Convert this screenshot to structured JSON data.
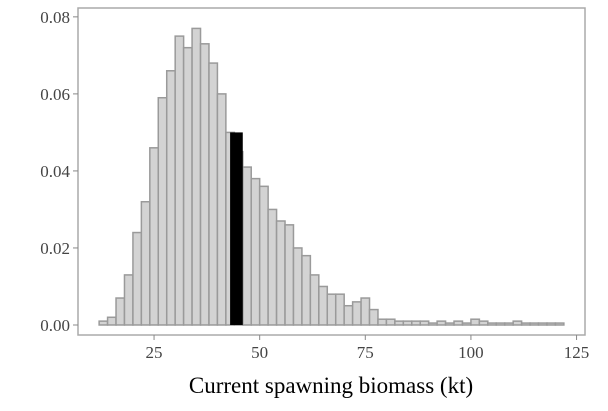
{
  "chart_data": {
    "type": "histogram",
    "xlabel": "Current spawning biomass (kt)",
    "bins": [
      12,
      14,
      16,
      18,
      20,
      22,
      24,
      26,
      28,
      30,
      32,
      34,
      36,
      38,
      40,
      42,
      44,
      46,
      48,
      50,
      52,
      54,
      56,
      58,
      60,
      62,
      64,
      66,
      68,
      70,
      72,
      74,
      76,
      78,
      80,
      82,
      84,
      86,
      88,
      90,
      92,
      94,
      96,
      98,
      100,
      102,
      104,
      106,
      108,
      110,
      112,
      114,
      116,
      118,
      120,
      122
    ],
    "values": [
      0.001,
      0.002,
      0.007,
      0.013,
      0.024,
      0.032,
      0.046,
      0.059,
      0.066,
      0.075,
      0.072,
      0.077,
      0.073,
      0.068,
      0.06,
      0.05,
      0.045,
      0.041,
      0.038,
      0.036,
      0.03,
      0.027,
      0.026,
      0.02,
      0.018,
      0.013,
      0.01,
      0.008,
      0.008,
      0.005,
      0.006,
      0.007,
      0.004,
      0.0015,
      0.0015,
      0.001,
      0.001,
      0.001,
      0.001,
      0.0005,
      0.001,
      0.0005,
      0.001,
      0.0005,
      0.0015,
      0.001,
      0.0005,
      0.0005,
      0.0005,
      0.001,
      0.0005,
      0.0005,
      0.0005,
      0.0005,
      0.0005
    ],
    "color": "#d3d3d3",
    "edgecolor": "#9a9a9a",
    "highlight": {
      "x": [
        43,
        46
      ],
      "value": 0.05,
      "color": "#000000"
    },
    "xlim": [
      7,
      127
    ],
    "ylim": [
      -0.0026,
      0.0823
    ],
    "xticks": [
      25,
      50,
      75,
      100,
      125
    ],
    "yticks": [
      {
        "value": 0,
        "label": "0.00"
      },
      {
        "value": 0.02,
        "label": "0.02"
      },
      {
        "value": 0.04,
        "label": "0.04"
      },
      {
        "value": 0.06,
        "label": "0.06"
      },
      {
        "value": 0.08,
        "label": "0.08"
      }
    ]
  }
}
